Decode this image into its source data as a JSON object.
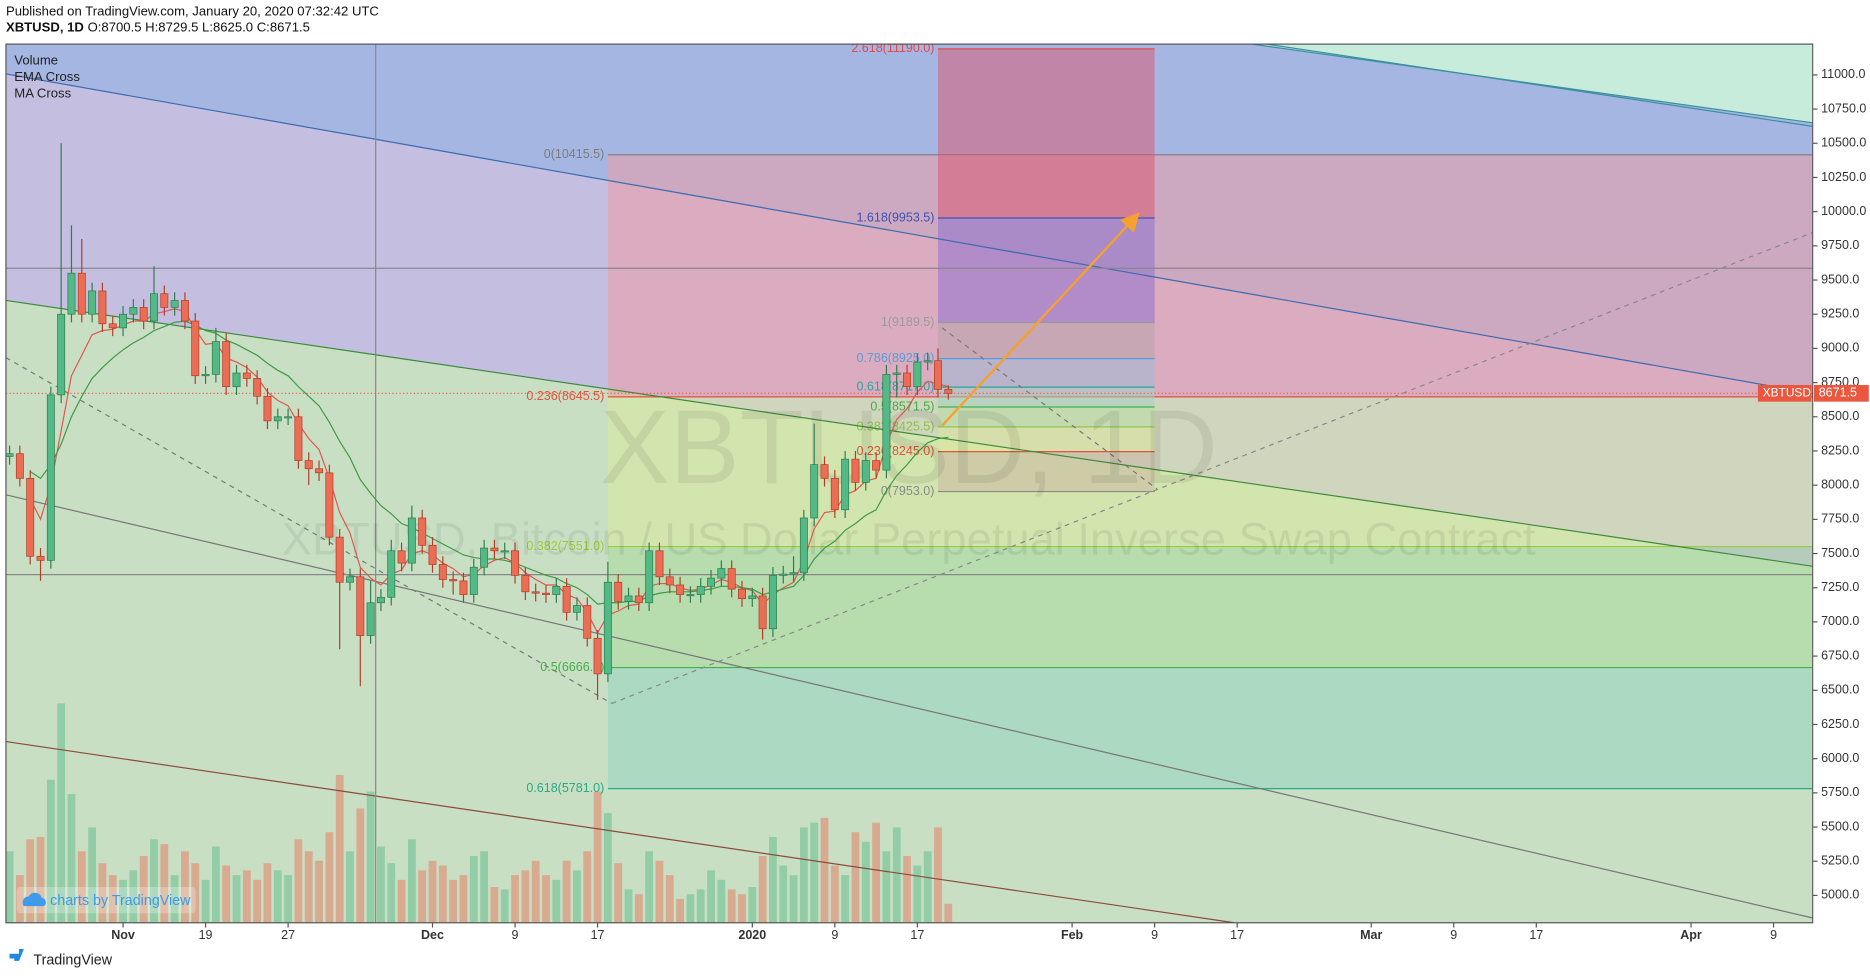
{
  "header": {
    "published": "Published on TradingView.com, January 20, 2020 07:32:42 UTC",
    "symbol": "XBTUSD, 1D",
    "ohlc": "O:8700.5 H:8729.5 L:8625.0 C:8671.5"
  },
  "chart_data": {
    "type": "candlestick",
    "volume_name": "Volume",
    "watermark": "XBTUSD, 1D",
    "watermark_subtitle": "XBTUSD, Bitcoin / US Dollar Perpetual Inverse Swap Contract",
    "up_color": "#53b987",
    "down_color": "#eb6d54",
    "x": [
      0,
      1,
      2,
      3,
      4,
      5,
      6,
      7,
      8,
      9,
      10,
      11,
      12,
      13,
      14,
      15,
      16,
      17,
      18,
      19,
      20,
      21,
      22,
      23,
      24,
      25,
      26,
      27,
      28,
      29,
      30,
      31,
      32,
      33,
      34,
      35,
      36,
      37,
      38,
      39,
      40,
      41,
      42,
      43,
      44,
      45,
      46,
      47,
      48,
      49,
      50,
      51,
      52,
      53,
      54,
      55,
      56,
      57,
      58,
      59,
      60,
      61,
      62,
      63,
      64,
      65,
      66,
      67,
      68,
      69,
      70,
      71,
      72,
      73,
      74,
      75,
      76,
      77,
      78,
      79,
      80,
      81,
      82,
      83,
      84,
      85,
      86,
      87,
      88,
      89,
      90,
      91
    ],
    "open": [
      8210,
      8230,
      8050,
      7480,
      7450,
      8660,
      9250,
      9550,
      9250,
      9420,
      9180,
      9150,
      9250,
      9300,
      9200,
      9400,
      9300,
      9350,
      9200,
      8800,
      8810,
      9050,
      8720,
      8820,
      8780,
      8650,
      8470,
      8500,
      8500,
      8180,
      8120,
      8090,
      7620,
      7290,
      7330,
      6900,
      7140,
      7180,
      7520,
      7430,
      7760,
      7560,
      7420,
      7310,
      7300,
      7200,
      7400,
      7540,
      7520,
      7520,
      7340,
      7220,
      7210,
      7200,
      7260,
      7070,
      7120,
      6880,
      6620,
      7290,
      7150,
      7190,
      7140,
      7520,
      7330,
      7270,
      7200,
      7200,
      7260,
      7320,
      7390,
      7240,
      7170,
      7190,
      6950,
      7340,
      7350,
      7360,
      7760,
      8150,
      8050,
      7820,
      8190,
      8020,
      8180,
      8110,
      8810,
      8820,
      8720,
      8900,
      8910,
      8700.5
    ],
    "high": [
      8290,
      8290,
      8110,
      7540,
      8720,
      10500,
      9900,
      9800,
      9480,
      9480,
      9240,
      9310,
      9360,
      9360,
      9600,
      9460,
      9410,
      9410,
      9260,
      8870,
      9150,
      9110,
      8880,
      8880,
      8840,
      8710,
      8560,
      8560,
      8560,
      8240,
      8180,
      8150,
      7680,
      7390,
      7390,
      7300,
      7240,
      7600,
      7580,
      7850,
      7820,
      7620,
      7480,
      7370,
      7360,
      7460,
      7600,
      7600,
      7580,
      7580,
      7400,
      7280,
      7270,
      7320,
      7320,
      7180,
      7180,
      6940,
      7440,
      7350,
      7250,
      7250,
      7580,
      7580,
      7390,
      7330,
      7260,
      7320,
      7380,
      7450,
      7450,
      7300,
      7250,
      7250,
      7400,
      7410,
      7480,
      7820,
      8450,
      8210,
      8110,
      8250,
      8250,
      8240,
      8240,
      8880,
      8880,
      8880,
      8960,
      8970,
      9000,
      8729.5
    ],
    "low": [
      8150,
      7990,
      7420,
      7300,
      7390,
      8600,
      9190,
      9190,
      9190,
      9120,
      9090,
      9090,
      9190,
      9140,
      9140,
      9240,
      9240,
      9140,
      8740,
      8740,
      8750,
      8660,
      8660,
      8720,
      8590,
      8410,
      8410,
      8440,
      8120,
      8000,
      8030,
      7560,
      6800,
      7230,
      6530,
      6840,
      7080,
      7120,
      7370,
      7370,
      7500,
      7360,
      7250,
      7200,
      7140,
      7140,
      7340,
      7460,
      7460,
      7280,
      7160,
      7150,
      7140,
      7140,
      7010,
      7010,
      6820,
      6430,
      6560,
      7090,
      7090,
      7080,
      7080,
      7270,
      7210,
      7140,
      7140,
      7140,
      7200,
      7260,
      7180,
      7110,
      7110,
      6870,
      6890,
      7280,
      7290,
      7300,
      7700,
      7990,
      7760,
      7760,
      7960,
      7960,
      8050,
      8050,
      8640,
      8660,
      8660,
      8840,
      8640,
      8625
    ],
    "close": [
      8230,
      8050,
      7480,
      7450,
      8660,
      9250,
      9550,
      9250,
      9420,
      9180,
      9150,
      9250,
      9300,
      9200,
      9400,
      9300,
      9350,
      9200,
      8800,
      8810,
      9050,
      8720,
      8820,
      8780,
      8650,
      8470,
      8500,
      8500,
      8180,
      8120,
      8090,
      7620,
      7290,
      7330,
      6900,
      7140,
      7180,
      7520,
      7430,
      7760,
      7560,
      7420,
      7310,
      7300,
      7200,
      7400,
      7540,
      7520,
      7520,
      7340,
      7220,
      7210,
      7200,
      7260,
      7070,
      7120,
      6880,
      6620,
      7290,
      7150,
      7190,
      7140,
      7520,
      7330,
      7270,
      7200,
      7200,
      7260,
      7320,
      7390,
      7240,
      7170,
      7190,
      6950,
      7340,
      7350,
      7360,
      7760,
      8150,
      8050,
      7820,
      8190,
      8020,
      8180,
      8110,
      8810,
      8820,
      8720,
      8900,
      8910,
      8700.5,
      8671.5
    ],
    "volume": [
      30,
      20,
      35,
      36,
      60,
      92,
      54,
      30,
      40,
      25,
      20,
      18,
      22,
      28,
      35,
      33,
      20,
      30,
      25,
      18,
      32,
      24,
      20,
      22,
      18,
      25,
      22,
      20,
      35,
      30,
      26,
      38,
      62,
      30,
      48,
      55,
      32,
      25,
      18,
      35,
      22,
      26,
      24,
      18,
      20,
      28,
      30,
      15,
      14,
      20,
      22,
      26,
      20,
      18,
      26,
      22,
      30,
      55,
      46,
      25,
      14,
      12,
      30,
      26,
      20,
      10,
      12,
      14,
      22,
      18,
      14,
      12,
      15,
      28,
      36,
      24,
      20,
      40,
      42,
      44,
      24,
      20,
      38,
      34,
      42,
      30,
      40,
      28,
      24,
      30,
      40,
      8
    ],
    "vlim": [
      0,
      100
    ],
    "series": [
      {
        "name": "EMA Cross",
        "color": "#e0574f",
        "values": [
          null,
          null,
          7900,
          7750,
          8000,
          8400,
          8800,
          8950,
          9100,
          9130,
          9140,
          9170,
          9200,
          9200,
          9250,
          9270,
          9290,
          9270,
          9140,
          9030,
          9040,
          8930,
          8900,
          8860,
          8790,
          8680,
          8620,
          8580,
          8450,
          8340,
          8260,
          8050,
          7800,
          7650,
          7400,
          7320,
          7270,
          7350,
          7380,
          7500,
          7520,
          7490,
          7430,
          7390,
          7330,
          7350,
          7410,
          7450,
          7470,
          7430,
          7360,
          7310,
          7270,
          7270,
          7200,
          7170,
          7070,
          6920,
          7050,
          7080,
          7120,
          7130,
          7260,
          7280,
          7280,
          7250,
          7230,
          7240,
          7270,
          7310,
          7290,
          7250,
          7230,
          7130,
          7200,
          7250,
          7290,
          7450,
          7680,
          7800,
          7810,
          7930,
          7960,
          8030,
          8050,
          8300,
          8480,
          8560,
          8680,
          8760,
          8740,
          8720
        ]
      },
      {
        "name": "MA Cross",
        "color": "#3f9a45",
        "values": [
          null,
          null,
          8100,
          8050,
          8150,
          8300,
          8500,
          8650,
          8780,
          8860,
          8930,
          8990,
          9040,
          9080,
          9130,
          9160,
          9190,
          9200,
          9170,
          9130,
          9110,
          9060,
          9030,
          8990,
          8950,
          8890,
          8840,
          8800,
          8720,
          8650,
          8580,
          8460,
          8320,
          8200,
          8040,
          7940,
          7850,
          7790,
          7720,
          7690,
          7650,
          7610,
          7570,
          7530,
          7490,
          7470,
          7460,
          7460,
          7450,
          7430,
          7400,
          7370,
          7340,
          7320,
          7280,
          7250,
          7200,
          7130,
          7140,
          7140,
          7150,
          7150,
          7190,
          7210,
          7220,
          7220,
          7220,
          7230,
          7240,
          7260,
          7260,
          7250,
          7240,
          7200,
          7220,
          7240,
          7260,
          7340,
          7460,
          7540,
          7590,
          7670,
          7720,
          7780,
          7820,
          7960,
          8070,
          8150,
          8240,
          8310,
          8340,
          8350
        ]
      }
    ],
    "xlim": [
      -0.35,
      174.8
    ],
    "xticks": [
      {
        "value": 11,
        "label": "Nov"
      },
      19,
      27,
      {
        "value": 41,
        "label": "Dec"
      },
      {
        "value": 49,
        "label": "9"
      },
      {
        "value": 57,
        "label": "17"
      },
      {
        "value": 72,
        "label": "2020"
      },
      {
        "value": 80,
        "label": "9"
      },
      {
        "value": 88,
        "label": "17"
      },
      {
        "value": 103,
        "label": "Feb"
      },
      {
        "value": 111,
        "label": "9"
      },
      {
        "value": 119,
        "label": "17"
      },
      {
        "value": 132,
        "label": "Mar"
      },
      {
        "value": 140,
        "label": "9"
      },
      {
        "value": 148,
        "label": "17"
      },
      {
        "value": 163,
        "label": "Apr"
      },
      {
        "value": 171,
        "label": "9"
      }
    ],
    "ylim": [
      4800,
      11225
    ],
    "yticks": [
      {
        "value": 5000,
        "label": "5000.0"
      },
      {
        "value": 5250,
        "label": "5250.0"
      },
      {
        "value": 5500,
        "label": "5500.0"
      },
      {
        "value": 5750,
        "label": "5750.0"
      },
      {
        "value": 6000,
        "label": "6000.0"
      },
      {
        "value": 6250,
        "label": "6250.0"
      },
      {
        "value": 6500,
        "label": "6500.0"
      },
      {
        "value": 6750,
        "label": "6750.0"
      },
      {
        "value": 7000,
        "label": "7000.0"
      },
      {
        "value": 7250,
        "label": "7250.0"
      },
      {
        "value": 7500,
        "label": "7500.0"
      },
      {
        "value": 7750,
        "label": "7750.0"
      },
      {
        "value": 8000,
        "label": "8000.0"
      },
      {
        "value": 8250,
        "label": "8250.0"
      },
      {
        "value": 8500,
        "label": "8500.0"
      },
      {
        "value": 8750,
        "label": "8750.0"
      },
      {
        "value": 9000,
        "label": "9000.0"
      },
      {
        "value": 9250,
        "label": "9250.0"
      },
      {
        "value": 9500,
        "label": "9500.0"
      },
      {
        "value": 9750,
        "label": "9750.0"
      },
      {
        "value": 10000,
        "label": "10000.0"
      },
      {
        "value": 10250,
        "label": "10250.0"
      },
      {
        "value": 10500,
        "label": "10500.0"
      },
      {
        "value": 10750,
        "label": "10750.0"
      },
      {
        "value": 11000,
        "label": "11000.0"
      }
    ],
    "last_price": {
      "symbol": "XBTUSD",
      "value": 8671.5,
      "color": "#e9573f"
    },
    "fibs": [
      {
        "from": 58,
        "levels": [
          {
            "value": 10415.5,
            "label": "0(10415.5)",
            "color": "#7d7d7d"
          },
          {
            "value": 8645.5,
            "label": "0.236(8645.5)",
            "color": "#e0533f"
          },
          {
            "value": 7551.0,
            "label": "0.382(7551.0)",
            "color": "#9ccc3c"
          },
          {
            "value": 6666.0,
            "label": "0.5(6666.0)",
            "color": "#43b049"
          },
          {
            "value": 5781.0,
            "label": "0.618(5781.0)",
            "color": "#2aa88a"
          }
        ],
        "fills": [
          "#f29aa0",
          "#dcec9a",
          "#a6da98",
          "#8fd4bd"
        ]
      },
      {
        "from": 90,
        "to": 111,
        "levels": [
          {
            "value": 11190.0,
            "label": "2.618(11190.0)",
            "color": "#e04a4a"
          },
          {
            "value": 9953.5,
            "label": "1.618(9953.5)",
            "color": "#3f51b5"
          },
          {
            "value": 9189.5,
            "label": "1(9189.5)",
            "color": "#9a9a9a"
          },
          {
            "value": 8925.0,
            "label": "0.786(8925.0)",
            "color": "#5b9cd6"
          },
          {
            "value": 8717.0,
            "label": "0.618(8717.0)",
            "color": "#26a69a"
          },
          {
            "value": 8571.5,
            "label": "0.5(8571.5)",
            "color": "#43b049"
          },
          {
            "value": 8425.5,
            "label": "0.382(8425.5)",
            "color": "#8bc34a"
          },
          {
            "value": 8245.0,
            "label": "0.236(8245.0)",
            "color": "#e0533f"
          },
          {
            "value": 7953.0,
            "label": "0(7953.0)",
            "color": "#8a8a8a"
          }
        ],
        "fills": [
          "#d9546b",
          "#8a6cd0",
          "#b3a2a8",
          "#98bad6",
          "#9ed3c3",
          "#b6e0a2",
          "#dbe79a",
          "#c8b4a0"
        ]
      }
    ]
  },
  "footer": {
    "brand": "charts by TradingView",
    "logo": "TradingView"
  }
}
